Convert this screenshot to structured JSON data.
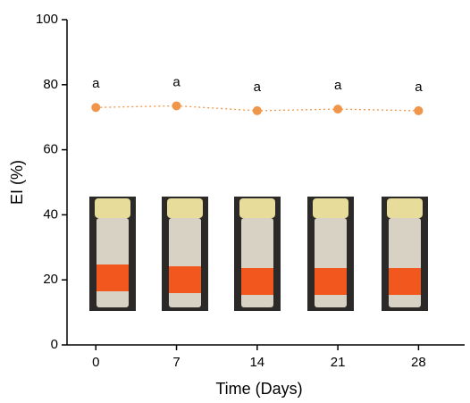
{
  "chart_data": {
    "type": "line",
    "xlabel": "Time (Days)",
    "ylabel": "EI (%)",
    "x": [
      0,
      7,
      14,
      21,
      28
    ],
    "series": [
      {
        "name": "EI",
        "color": "#f0964a",
        "values": [
          73,
          73.5,
          72,
          72.5,
          72
        ]
      }
    ],
    "point_labels": [
      "a",
      "a",
      "a",
      "a",
      "a"
    ],
    "xlim": [
      -2.5,
      32
    ],
    "xticks": [
      0,
      7,
      14,
      21,
      28
    ],
    "ylim": [
      0,
      100
    ],
    "yticks": [
      0,
      20,
      40,
      60,
      80,
      100
    ]
  }
}
